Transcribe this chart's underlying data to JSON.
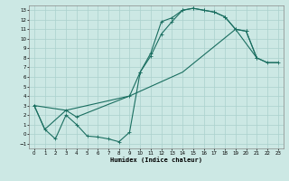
{
  "bg_color": "#cce8e4",
  "grid_color": "#aad0cc",
  "line_color": "#1a6e60",
  "xlabel": "Humidex (Indice chaleur)",
  "xlim": [
    -0.5,
    23.5
  ],
  "ylim": [
    -1.5,
    13.5
  ],
  "line1_x": [
    0,
    1,
    2,
    3,
    4,
    5,
    6,
    7,
    8,
    9,
    10,
    11,
    12,
    13,
    14,
    15,
    16,
    17,
    18,
    19,
    20,
    21
  ],
  "line1_y": [
    3,
    0.5,
    -0.5,
    2.0,
    1.0,
    -0.2,
    -0.3,
    -0.5,
    -0.8,
    0.2,
    6.5,
    8.5,
    11.8,
    12.2,
    13.0,
    13.2,
    13.0,
    12.8,
    12.3,
    11.0,
    10.8,
    8.0
  ],
  "line2_x": [
    0,
    3,
    4,
    9,
    10,
    11,
    12,
    13,
    14,
    15,
    16,
    17,
    18,
    19,
    20,
    21,
    22,
    23
  ],
  "line2_y": [
    3,
    2.5,
    1.8,
    4.0,
    6.5,
    8.2,
    10.5,
    11.8,
    13.0,
    13.2,
    13.0,
    12.8,
    12.3,
    11.0,
    10.8,
    8.0,
    7.5,
    7.5
  ],
  "line3_x": [
    0,
    1,
    3,
    9,
    14,
    19,
    21,
    22,
    23
  ],
  "line3_y": [
    3,
    0.5,
    2.5,
    4.0,
    6.5,
    11.0,
    8.0,
    7.5,
    7.5
  ]
}
